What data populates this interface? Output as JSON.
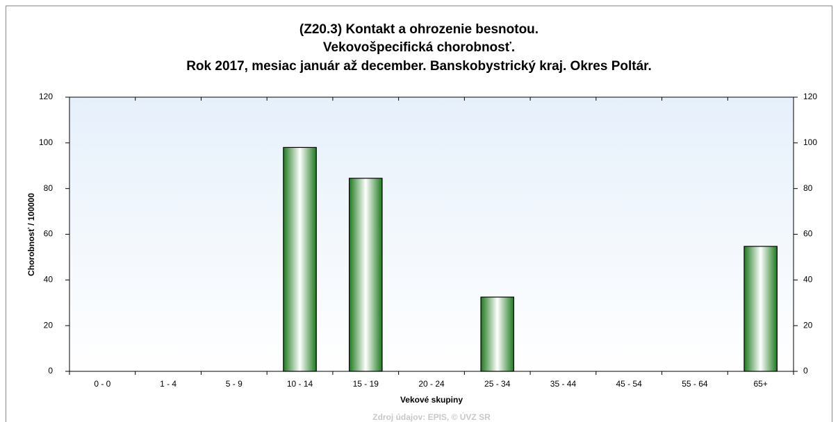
{
  "chart_data": {
    "type": "bar",
    "title": [
      "(Z20.3)  Kontakt a ohrozenie besnotou.",
      "Vekovošpecifická chorobnosť.",
      "Rok 2017, mesiac január až december. Banskobystrický kraj. Okres Poltár."
    ],
    "xlabel": "Vekové skupiny",
    "ylabel": "Chorobnosť / 100000",
    "source": "Zdroj údajov: EPIS, © ÚVZ SR",
    "categories": [
      "0 - 0",
      "1 - 4",
      "5 - 9",
      "10 - 14",
      "15 - 19",
      "20 - 24",
      "25 - 34",
      "35 - 44",
      "45 - 54",
      "55 - 64",
      "65+"
    ],
    "values": [
      0,
      0,
      0,
      98,
      84.5,
      0,
      32.5,
      0,
      0,
      0,
      54.7
    ],
    "color": "#1e8a1e",
    "ylim": [
      0,
      120
    ],
    "yticks": [
      0,
      20,
      40,
      60,
      80,
      100,
      120
    ],
    "y2lim": [
      0,
      120
    ],
    "y2ticks": [
      0,
      20,
      40,
      60,
      80,
      100,
      120
    ]
  }
}
